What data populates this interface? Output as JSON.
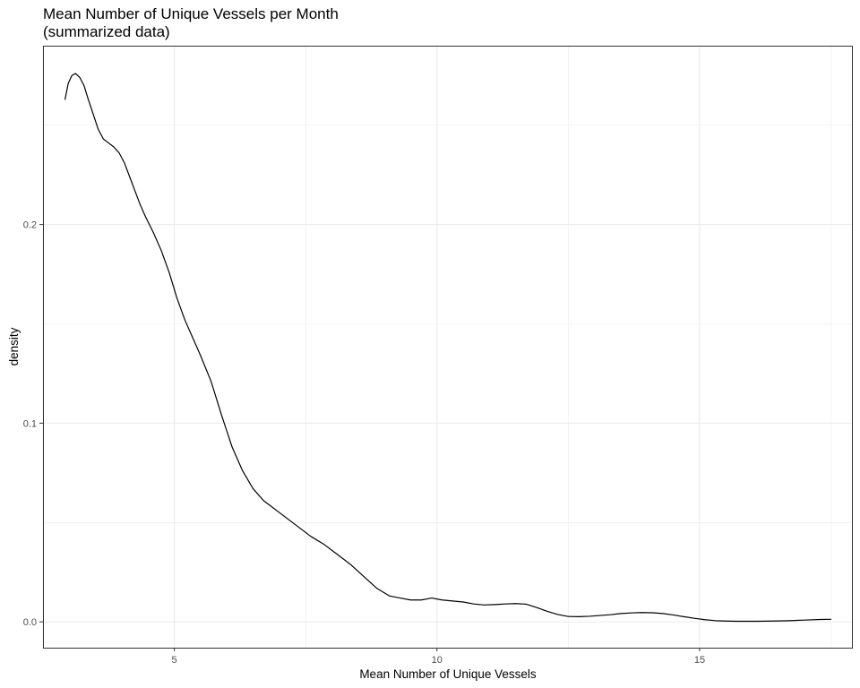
{
  "chart_data": {
    "type": "line",
    "title": "Mean Number of Unique Vessels per Month",
    "subtitle": "(summarized data)",
    "xlabel": "Mean Number of Unique Vessels",
    "ylabel": "density",
    "xlim": [
      2.5,
      17.9
    ],
    "ylim": [
      -0.013,
      0.29
    ],
    "x_ticks": [
      5,
      10,
      15
    ],
    "x_tick_labels": [
      "5",
      "10",
      "15"
    ],
    "x_minor_ticks": [
      2.5,
      7.5,
      12.5,
      17.5
    ],
    "y_ticks": [
      0.0,
      0.1,
      0.2
    ],
    "y_tick_labels": [
      "0.0",
      "0.1",
      "0.2"
    ],
    "y_minor_ticks": [
      0.05,
      0.15,
      0.25
    ],
    "grid": true,
    "legend": "none",
    "colors": {
      "line": "#000000",
      "grid": "#ebebeb",
      "panel_border": "#333333",
      "background": "#ffffff"
    },
    "series": [
      {
        "x": [
          2.92,
          2.98,
          3.05,
          3.12,
          3.2,
          3.28,
          3.35,
          3.45,
          3.55,
          3.65,
          3.75,
          3.85,
          3.95,
          4.05,
          4.15,
          4.25,
          4.35,
          4.45,
          4.6,
          4.75,
          4.9,
          5.05,
          5.2,
          5.35,
          5.5,
          5.7,
          5.9,
          6.1,
          6.3,
          6.5,
          6.7,
          6.85,
          7.0,
          7.2,
          7.4,
          7.6,
          7.85,
          8.1,
          8.35,
          8.6,
          8.85,
          9.1,
          9.3,
          9.5,
          9.7,
          9.9,
          10.1,
          10.3,
          10.5,
          10.7,
          10.9,
          11.1,
          11.3,
          11.5,
          11.7,
          11.9,
          12.1,
          12.3,
          12.5,
          12.7,
          12.9,
          13.1,
          13.3,
          13.5,
          13.7,
          13.9,
          14.1,
          14.3,
          14.5,
          14.7,
          14.9,
          15.1,
          15.3,
          15.5,
          15.7,
          15.9,
          16.1,
          16.4,
          16.7,
          17.0,
          17.3,
          17.5
        ],
        "y": [
          0.263,
          0.271,
          0.275,
          0.276,
          0.274,
          0.27,
          0.264,
          0.256,
          0.248,
          0.243,
          0.241,
          0.239,
          0.236,
          0.231,
          0.224,
          0.217,
          0.21,
          0.204,
          0.196,
          0.187,
          0.176,
          0.163,
          0.152,
          0.143,
          0.134,
          0.121,
          0.104,
          0.088,
          0.076,
          0.067,
          0.061,
          0.058,
          0.055,
          0.051,
          0.047,
          0.043,
          0.039,
          0.034,
          0.029,
          0.023,
          0.017,
          0.013,
          0.012,
          0.011,
          0.011,
          0.012,
          0.011,
          0.0105,
          0.01,
          0.009,
          0.0085,
          0.0087,
          0.009,
          0.0092,
          0.0089,
          0.0072,
          0.0053,
          0.0037,
          0.0027,
          0.0026,
          0.0028,
          0.0032,
          0.0036,
          0.0042,
          0.0045,
          0.0047,
          0.0046,
          0.0042,
          0.0035,
          0.0026,
          0.0018,
          0.0011,
          0.0006,
          0.0004,
          0.0003,
          0.0003,
          0.0003,
          0.0004,
          0.0006,
          0.0009,
          0.0012,
          0.0013
        ]
      }
    ]
  }
}
